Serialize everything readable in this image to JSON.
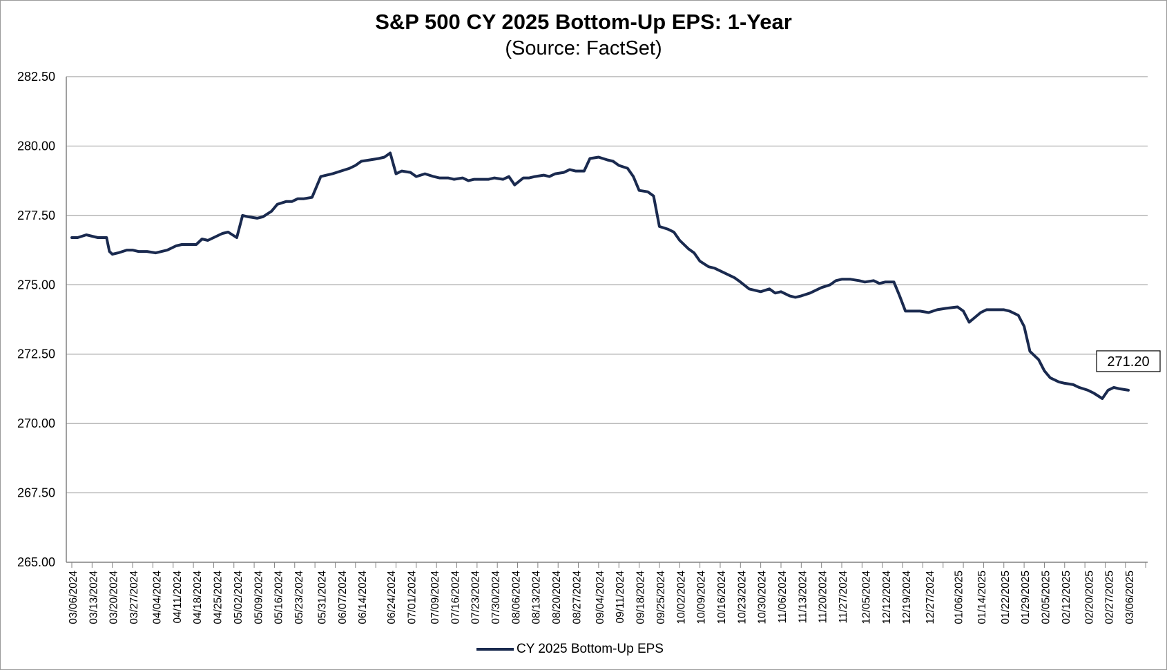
{
  "chart_data": {
    "type": "line",
    "title": "S&P 500 CY 2025 Bottom-Up  EPS: 1-Year",
    "subtitle": "(Source: FactSet)",
    "xlabel": "",
    "ylabel": "",
    "ylim": [
      265,
      282.5
    ],
    "yticks": [
      "265.00",
      "267.50",
      "270.00",
      "272.50",
      "275.00",
      "277.50",
      "280.00",
      "282.50"
    ],
    "grid": true,
    "legend_position": "bottom-center",
    "line_color": "#1a2a4f",
    "x_tick_labels": [
      "03/06/2024",
      "03/13/2024",
      "03/20/2024",
      "03/27/2024",
      "04/04/2024",
      "04/11/2024",
      "04/18/2024",
      "04/25/2024",
      "05/02/2024",
      "05/09/2024",
      "05/16/2024",
      "05/23/2024",
      "05/31/2024",
      "06/07/2024",
      "06/14/2024",
      "06/24/2024",
      "07/01/2024",
      "07/09/2024",
      "07/16/2024",
      "07/23/2024",
      "07/30/2024",
      "08/06/2024",
      "08/13/2024",
      "08/20/2024",
      "08/27/2024",
      "09/04/2024",
      "09/11/2024",
      "09/18/2024",
      "09/25/2024",
      "10/02/2024",
      "10/09/2024",
      "10/16/2024",
      "10/23/2024",
      "10/30/2024",
      "11/06/2024",
      "11/13/2024",
      "11/20/2024",
      "11/27/2024",
      "12/05/2024",
      "12/12/2024",
      "12/19/2024",
      "12/27/2024",
      "01/06/2025",
      "01/14/2025",
      "01/22/2025",
      "01/29/2025",
      "02/05/2025",
      "02/12/2025",
      "02/20/2025",
      "02/27/2025",
      "03/06/2025"
    ],
    "series": [
      {
        "name": "CY 2025 Bottom-Up EPS",
        "x": [
          "03/06/2024",
          "03/08/2024",
          "03/11/2024",
          "03/13/2024",
          "03/15/2024",
          "03/18/2024",
          "03/19/2024",
          "03/20/2024",
          "03/22/2024",
          "03/25/2024",
          "03/27/2024",
          "03/29/2024",
          "04/01/2024",
          "04/04/2024",
          "04/08/2024",
          "04/11/2024",
          "04/13/2024",
          "04/15/2024",
          "04/18/2024",
          "04/20/2024",
          "04/22/2024",
          "04/24/2024",
          "04/25/2024",
          "04/27/2024",
          "04/29/2024",
          "05/02/2024",
          "05/04/2024",
          "05/06/2024",
          "05/09/2024",
          "05/11/2024",
          "05/14/2024",
          "05/16/2024",
          "05/19/2024",
          "05/21/2024",
          "05/23/2024",
          "05/25/2024",
          "05/28/2024",
          "05/31/2024",
          "06/02/2024",
          "06/04/2024",
          "06/07/2024",
          "06/10/2024",
          "06/12/2024",
          "06/14/2024",
          "06/17/2024",
          "06/20/2024",
          "06/22/2024",
          "06/24/2024",
          "06/26/2024",
          "06/28/2024",
          "07/01/2024",
          "07/03/2024",
          "07/06/2024",
          "07/09/2024",
          "07/11/2024",
          "07/14/2024",
          "07/16/2024",
          "07/19/2024",
          "07/21/2024",
          "07/23/2024",
          "07/26/2024",
          "07/28/2024",
          "07/30/2024",
          "08/02/2024",
          "08/04/2024",
          "08/06/2024",
          "08/09/2024",
          "08/11/2024",
          "08/13/2024",
          "08/16/2024",
          "08/18/2024",
          "08/20/2024",
          "08/23/2024",
          "08/25/2024",
          "08/27/2024",
          "08/30/2024",
          "09/01/2024",
          "09/04/2024",
          "09/07/2024",
          "09/09/2024",
          "09/11/2024",
          "09/14/2024",
          "09/16/2024",
          "09/18/2024",
          "09/21/2024",
          "09/23/2024",
          "09/25/2024",
          "09/28/2024",
          "09/30/2024",
          "10/02/2024",
          "10/05/2024",
          "10/07/2024",
          "10/09/2024",
          "10/12/2024",
          "10/14/2024",
          "10/16/2024",
          "10/19/2024",
          "10/21/2024",
          "10/23/2024",
          "10/26/2024",
          "10/28/2024",
          "10/30/2024",
          "11/02/2024",
          "11/04/2024",
          "11/06/2024",
          "11/09/2024",
          "11/11/2024",
          "11/13/2024",
          "11/16/2024",
          "11/18/2024",
          "11/20/2024",
          "11/23/2024",
          "11/25/2024",
          "11/27/2024",
          "11/30/2024",
          "12/03/2024",
          "12/05/2024",
          "12/08/2024",
          "12/10/2024",
          "12/12/2024",
          "12/15/2024",
          "12/17/2024",
          "12/19/2024",
          "12/22/2024",
          "12/24/2024",
          "12/27/2024",
          "12/30/2024",
          "01/02/2025",
          "01/06/2025",
          "01/08/2025",
          "01/10/2025",
          "01/14/2025",
          "01/16/2025",
          "01/19/2025",
          "01/22/2025",
          "01/24/2025",
          "01/27/2025",
          "01/29/2025",
          "01/31/2025",
          "02/03/2025",
          "02/05/2025",
          "02/07/2025",
          "02/10/2025",
          "02/12/2025",
          "02/15/2025",
          "02/17/2025",
          "02/20/2025",
          "02/22/2025",
          "02/25/2025",
          "02/27/2025",
          "03/01/2025",
          "03/03/2025",
          "03/06/2025"
        ],
        "y": [
          276.7,
          276.7,
          276.8,
          276.75,
          276.7,
          276.7,
          276.2,
          276.1,
          276.15,
          276.25,
          276.25,
          276.2,
          276.2,
          276.15,
          276.25,
          276.4,
          276.45,
          276.45,
          276.45,
          276.65,
          276.6,
          276.7,
          276.75,
          276.85,
          276.9,
          276.7,
          277.5,
          277.45,
          277.4,
          277.45,
          277.65,
          277.9,
          278.0,
          278.0,
          278.1,
          278.1,
          278.15,
          278.9,
          278.95,
          279.0,
          279.1,
          279.2,
          279.3,
          279.45,
          279.5,
          279.55,
          279.6,
          279.75,
          279.0,
          279.1,
          279.05,
          278.9,
          279.0,
          278.9,
          278.85,
          278.85,
          278.8,
          278.85,
          278.75,
          278.8,
          278.8,
          278.8,
          278.85,
          278.8,
          278.9,
          278.6,
          278.85,
          278.85,
          278.9,
          278.95,
          278.9,
          279.0,
          279.05,
          279.15,
          279.1,
          279.1,
          279.55,
          279.6,
          279.5,
          279.45,
          279.3,
          279.2,
          278.9,
          278.4,
          278.35,
          278.2,
          277.1,
          277.0,
          276.9,
          276.6,
          276.3,
          276.15,
          275.85,
          275.65,
          275.6,
          275.5,
          275.35,
          275.25,
          275.1,
          274.85,
          274.8,
          274.75,
          274.85,
          274.7,
          274.75,
          274.6,
          274.55,
          274.6,
          274.7,
          274.8,
          274.9,
          275.0,
          275.15,
          275.2,
          275.2,
          275.15,
          275.1,
          275.15,
          275.05,
          275.1,
          275.1,
          274.6,
          274.05,
          274.05,
          274.05,
          274.0,
          274.1,
          274.15,
          274.2,
          274.05,
          273.65,
          274.0,
          274.1,
          274.1,
          274.1,
          274.05,
          273.9,
          273.5,
          272.6,
          272.3,
          271.9,
          271.65,
          271.5,
          271.45,
          271.4,
          271.3,
          271.2,
          271.1,
          270.9,
          271.2,
          271.3,
          271.25,
          271.2
        ],
        "end_label": "271.20"
      }
    ]
  }
}
